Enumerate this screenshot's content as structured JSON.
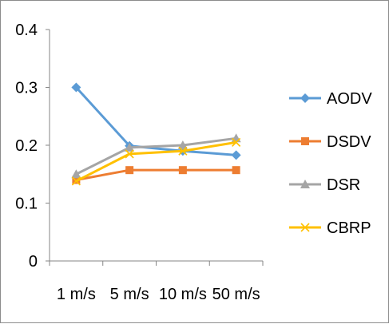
{
  "chart_data": {
    "type": "line",
    "title": "",
    "xlabel": "",
    "ylabel": "",
    "categories": [
      "1 m/s",
      "5 m/s",
      "10 m/s",
      "50 m/s"
    ],
    "y_ticks": [
      "0",
      "0.1",
      "0.2",
      "0.3",
      "0.4"
    ],
    "ylim": [
      0,
      0.4
    ],
    "grid": false,
    "legend": "right",
    "series": [
      {
        "name": "AODV",
        "color": "#5b9bd5",
        "marker": "diamond",
        "values": [
          0.3,
          0.199,
          0.19,
          0.183
        ]
      },
      {
        "name": "DSDV",
        "color": "#ed7d31",
        "marker": "square",
        "values": [
          0.14,
          0.157,
          0.157,
          0.157
        ]
      },
      {
        "name": "DSR",
        "color": "#a5a5a5",
        "marker": "triangle",
        "values": [
          0.15,
          0.196,
          0.2,
          0.212
        ]
      },
      {
        "name": "CBRP",
        "color": "#ffc000",
        "marker": "x",
        "values": [
          0.138,
          0.185,
          0.19,
          0.205
        ]
      }
    ]
  }
}
